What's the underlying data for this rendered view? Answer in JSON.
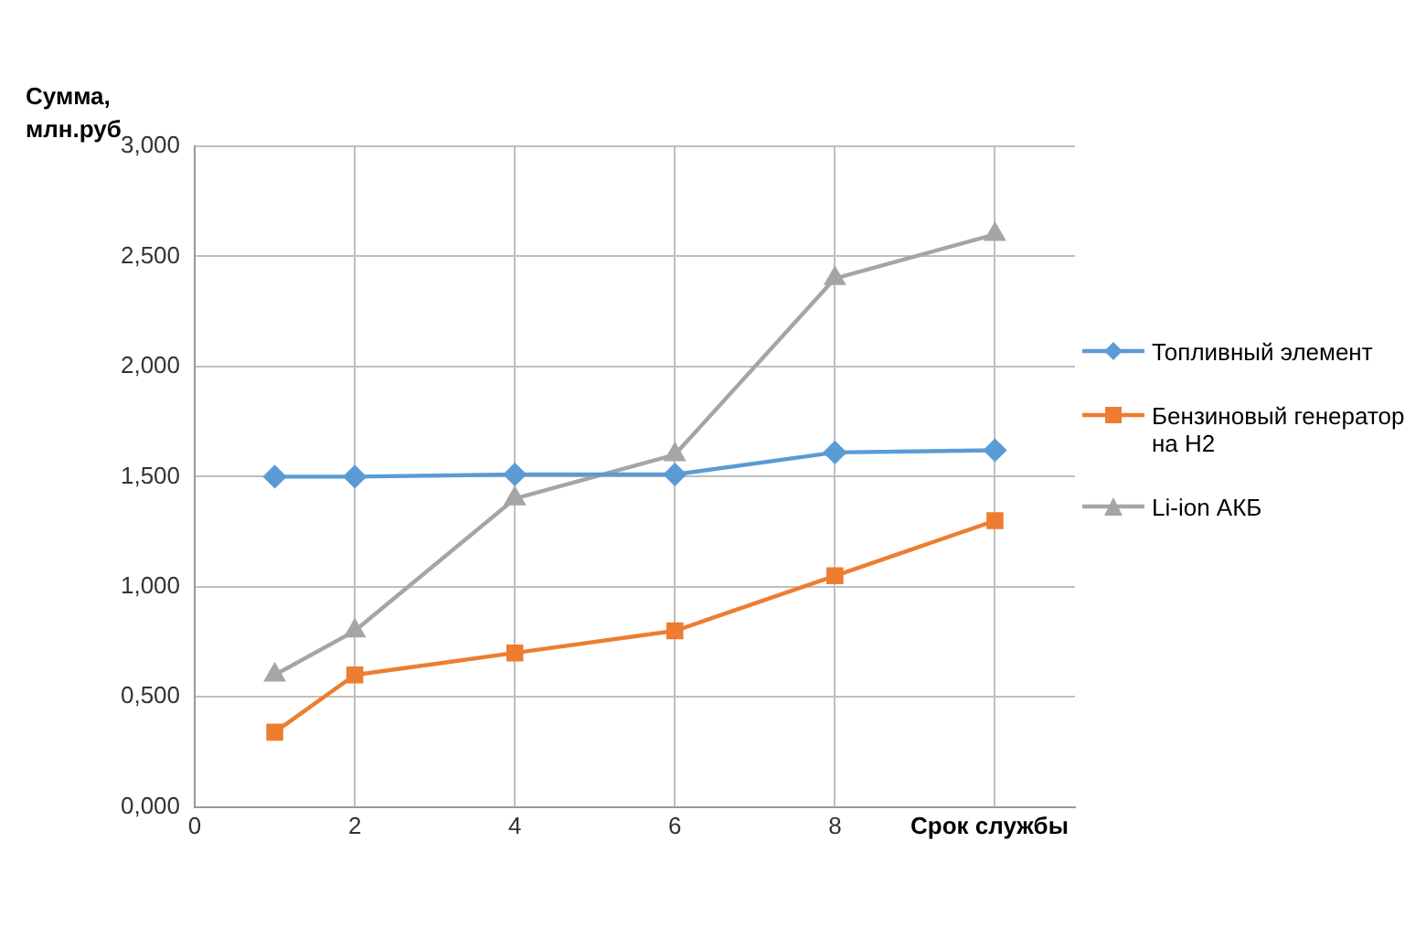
{
  "chart_data": {
    "type": "line",
    "xlabel": "Срок службы",
    "ylabel": "Сумма, млн.руб",
    "x": [
      1,
      2,
      4,
      6,
      8,
      10
    ],
    "series": [
      {
        "name": "Топливный элемент",
        "color": "#5b9bd5",
        "marker": "diamond",
        "values": [
          1.5,
          1.5,
          1.51,
          1.51,
          1.61,
          1.62
        ]
      },
      {
        "name": "Бензиновый генератор на H2",
        "color": "#ed7d31",
        "marker": "square",
        "values": [
          0.34,
          0.6,
          0.7,
          0.8,
          1.05,
          1.3
        ]
      },
      {
        "name": "Li-ion АКБ",
        "color": "#a5a5a5",
        "marker": "triangle",
        "values": [
          0.6,
          0.8,
          1.4,
          1.6,
          2.4,
          2.6
        ]
      }
    ],
    "xlim": [
      0,
      11
    ],
    "xticks": [
      0,
      2,
      4,
      6,
      8,
      {
        "value": 10,
        "label": null
      }
    ],
    "ylim": [
      0,
      3
    ],
    "yticks": [
      {
        "value": 0,
        "label": "0,000"
      },
      {
        "value": 0.5,
        "label": "0,500"
      },
      {
        "value": 1,
        "label": "1,000"
      },
      {
        "value": 1.5,
        "label": "1,500"
      },
      {
        "value": 2,
        "label": "2,000"
      },
      {
        "value": 2.5,
        "label": "2,500"
      },
      {
        "value": 3,
        "label": "3,000"
      }
    ],
    "grid": true,
    "legend": "right",
    "line_style": "solid"
  }
}
